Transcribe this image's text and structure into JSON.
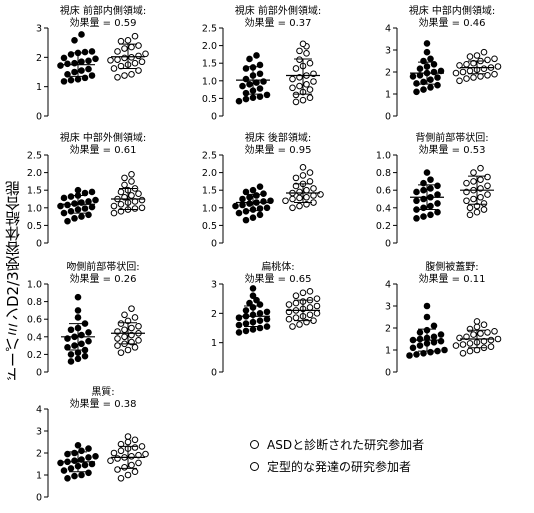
{
  "ylabel": "ドーパミンD2/3受容体結合能",
  "legend": {
    "asd": "ASDと診断された研究参加者",
    "td": "定型的な発達の研究参加者"
  },
  "chart_data": [
    {
      "type": "scatter",
      "title": "視床 前部内側領域:",
      "subtitle": "効果量 = 0.59",
      "ylim": [
        0,
        3
      ],
      "yticks": [
        "0",
        "1",
        "2",
        "3"
      ],
      "asd_mean": 1.75,
      "asd_sd": [
        1.35,
        2.15
      ],
      "td_mean": 2.02,
      "td_sd": [
        1.62,
        2.45
      ],
      "asd": [
        2.78,
        2.58,
        2.2,
        2.15,
        2.18,
        2.1,
        1.95,
        1.98,
        1.85,
        1.8,
        1.88,
        1.78,
        1.72,
        1.6,
        1.55,
        1.5,
        1.42,
        1.38,
        1.3,
        1.25,
        1.22,
        1.18
      ],
      "td": [
        2.72,
        2.55,
        2.58,
        2.4,
        2.35,
        2.3,
        2.2,
        2.12,
        2.05,
        2.0,
        1.98,
        1.92,
        1.9,
        1.85,
        1.8,
        1.75,
        1.7,
        1.62,
        1.55,
        1.42,
        1.38,
        1.32
      ]
    },
    {
      "type": "scatter",
      "title": "視床 前部外側領域:",
      "subtitle": "効果量 = 0.37",
      "ylim": [
        0,
        2.5
      ],
      "yticks": [
        "0",
        "0.5",
        "1.0",
        "1.5",
        "2.0",
        "2.5"
      ],
      "asd_mean": 1.02,
      "asd_sd": [
        0.62,
        1.4
      ],
      "td_mean": 1.15,
      "td_sd": [
        0.62,
        1.62
      ],
      "asd": [
        1.72,
        1.62,
        1.45,
        1.38,
        1.35,
        1.2,
        1.15,
        1.05,
        0.98,
        0.95,
        0.9,
        0.85,
        0.78,
        0.72,
        0.65,
        0.6,
        0.55,
        0.52,
        0.48,
        0.42
      ],
      "td": [
        2.05,
        1.98,
        1.85,
        1.78,
        1.6,
        1.5,
        1.42,
        1.35,
        1.2,
        1.15,
        1.1,
        1.05,
        0.98,
        0.9,
        0.85,
        0.8,
        0.75,
        0.68,
        0.6,
        0.52,
        0.45,
        0.4
      ]
    },
    {
      "type": "scatter",
      "title": "視床 中部内側領域:",
      "subtitle": "効果量 = 0.46",
      "ylim": [
        0,
        4
      ],
      "yticks": [
        "0",
        "1",
        "2",
        "3",
        "4"
      ],
      "asd_mean": 1.95,
      "asd_sd": [
        1.45,
        2.45
      ],
      "td_mean": 2.2,
      "td_sd": [
        1.92,
        2.5
      ],
      "asd": [
        3.3,
        2.9,
        2.6,
        2.5,
        2.35,
        2.25,
        2.15,
        2.05,
        2.0,
        1.95,
        1.85,
        1.8,
        1.75,
        1.65,
        1.55,
        1.48,
        1.4,
        1.3,
        1.2,
        1.1
      ],
      "td": [
        2.9,
        2.75,
        2.7,
        2.6,
        2.55,
        2.5,
        2.4,
        2.35,
        2.3,
        2.25,
        2.2,
        2.15,
        2.1,
        2.05,
        2.0,
        1.95,
        1.9,
        1.85,
        1.8,
        1.75,
        1.7,
        1.6
      ]
    },
    {
      "type": "scatter",
      "title": "視床 中部外側領域:",
      "subtitle": "効果量 = 0.61",
      "ylim": [
        0,
        2.5
      ],
      "yticks": [
        "0",
        "0.5",
        "1.0",
        "1.5",
        "2.0",
        "2.5"
      ],
      "asd_mean": 1.1,
      "asd_sd": [
        0.85,
        1.35
      ],
      "td_mean": 1.25,
      "td_sd": [
        0.95,
        1.55
      ],
      "asd": [
        1.5,
        1.45,
        1.42,
        1.35,
        1.32,
        1.28,
        1.22,
        1.18,
        1.15,
        1.12,
        1.08,
        1.05,
        1.02,
        0.98,
        0.95,
        0.9,
        0.85,
        0.8,
        0.75,
        0.7,
        0.62
      ],
      "td": [
        1.95,
        1.85,
        1.75,
        1.65,
        1.55,
        1.5,
        1.45,
        1.4,
        1.35,
        1.3,
        1.25,
        1.22,
        1.18,
        1.15,
        1.1,
        1.05,
        1.0,
        0.98,
        0.95,
        0.9,
        0.85
      ]
    },
    {
      "type": "scatter",
      "title": "視床 後部領域:",
      "subtitle": "効果量 = 0.95",
      "ylim": [
        0,
        2.5
      ],
      "yticks": [
        "0",
        "0.5",
        "1.0",
        "1.5",
        "2.0",
        "2.5"
      ],
      "asd_mean": 1.15,
      "asd_sd": [
        0.92,
        1.38
      ],
      "td_mean": 1.42,
      "td_sd": [
        1.15,
        1.68
      ],
      "asd": [
        1.6,
        1.5,
        1.45,
        1.4,
        1.35,
        1.3,
        1.25,
        1.2,
        1.18,
        1.15,
        1.12,
        1.08,
        1.05,
        1.0,
        0.98,
        0.95,
        0.9,
        0.85,
        0.8,
        0.72,
        0.65
      ],
      "td": [
        2.15,
        2.0,
        1.92,
        1.85,
        1.75,
        1.68,
        1.62,
        1.55,
        1.5,
        1.45,
        1.42,
        1.38,
        1.35,
        1.3,
        1.28,
        1.25,
        1.2,
        1.15,
        1.1,
        1.05,
        1.0
      ]
    },
    {
      "type": "scatter",
      "title": "背側前部帯状回:",
      "subtitle": "効果量 = 0.53",
      "ylim": [
        0,
        1.0
      ],
      "yticks": [
        "0",
        "0.2",
        "0.4",
        "0.6",
        "0.8",
        "1.0"
      ],
      "asd_mean": 0.52,
      "asd_sd": [
        0.38,
        0.66
      ],
      "td_mean": 0.6,
      "td_sd": [
        0.44,
        0.76
      ],
      "asd": [
        0.8,
        0.72,
        0.68,
        0.65,
        0.62,
        0.6,
        0.58,
        0.55,
        0.52,
        0.5,
        0.48,
        0.45,
        0.42,
        0.4,
        0.38,
        0.35,
        0.32,
        0.3,
        0.28
      ],
      "td": [
        0.85,
        0.8,
        0.75,
        0.72,
        0.7,
        0.68,
        0.65,
        0.62,
        0.6,
        0.58,
        0.55,
        0.52,
        0.5,
        0.48,
        0.45,
        0.42,
        0.4,
        0.38,
        0.35,
        0.32
      ]
    },
    {
      "type": "scatter",
      "title": "吻側前部帯状回:",
      "subtitle": "効果量 = 0.26",
      "ylim": [
        0,
        1.0
      ],
      "yticks": [
        "0",
        "0.2",
        "0.4",
        "0.6",
        "0.8",
        "1.0"
      ],
      "asd_mean": 0.4,
      "asd_sd": [
        0.25,
        0.55
      ],
      "td_mean": 0.44,
      "td_sd": [
        0.32,
        0.56
      ],
      "asd": [
        0.85,
        0.7,
        0.62,
        0.55,
        0.5,
        0.48,
        0.45,
        0.42,
        0.4,
        0.38,
        0.35,
        0.32,
        0.3,
        0.28,
        0.25,
        0.22,
        0.2,
        0.18,
        0.15,
        0.12
      ],
      "td": [
        0.72,
        0.65,
        0.62,
        0.58,
        0.55,
        0.52,
        0.5,
        0.48,
        0.46,
        0.44,
        0.42,
        0.4,
        0.38,
        0.36,
        0.34,
        0.32,
        0.3,
        0.28,
        0.25,
        0.22
      ]
    },
    {
      "type": "scatter",
      "title": "扁桃体:",
      "subtitle": "効果量 = 0.65",
      "ylim": [
        0,
        3
      ],
      "yticks": [
        "0",
        "1",
        "2",
        "3"
      ],
      "asd_mean": 1.9,
      "asd_sd": [
        1.55,
        2.25
      ],
      "td_mean": 2.1,
      "td_sd": [
        1.75,
        2.45
      ],
      "asd": [
        2.85,
        2.6,
        2.45,
        2.35,
        2.3,
        2.2,
        2.1,
        2.05,
        2.0,
        1.95,
        1.9,
        1.85,
        1.8,
        1.75,
        1.7,
        1.65,
        1.6,
        1.55,
        1.5,
        1.45,
        1.4,
        1.35
      ],
      "td": [
        2.75,
        2.7,
        2.6,
        2.5,
        2.45,
        2.4,
        2.35,
        2.3,
        2.25,
        2.2,
        2.15,
        2.1,
        2.05,
        2.0,
        1.95,
        1.9,
        1.85,
        1.8,
        1.75,
        1.7,
        1.62,
        1.55
      ]
    },
    {
      "type": "scatter",
      "title": "腹側被蓋野:",
      "subtitle": "効果量 = 0.11",
      "ylim": [
        0,
        4
      ],
      "yticks": [
        "0",
        "1",
        "2",
        "3",
        "4"
      ],
      "asd_mean": 1.45,
      "asd_sd": [
        0.95,
        1.95
      ],
      "td_mean": 1.5,
      "td_sd": [
        1.1,
        1.9
      ],
      "asd": [
        3.0,
        2.5,
        2.1,
        1.9,
        1.8,
        1.7,
        1.6,
        1.55,
        1.5,
        1.45,
        1.4,
        1.35,
        1.3,
        1.2,
        1.1,
        1.0,
        0.95,
        0.9,
        0.85,
        0.8,
        0.75
      ],
      "td": [
        2.3,
        2.15,
        2.05,
        1.95,
        1.85,
        1.8,
        1.75,
        1.7,
        1.6,
        1.55,
        1.5,
        1.45,
        1.4,
        1.35,
        1.3,
        1.25,
        1.2,
        1.15,
        1.1,
        1.0,
        0.95,
        0.85
      ]
    },
    {
      "type": "scatter",
      "title": "黒質:",
      "subtitle": "効果量 = 0.38",
      "ylim": [
        0,
        4
      ],
      "yticks": [
        "0",
        "1",
        "2",
        "3",
        "4"
      ],
      "asd_mean": 1.6,
      "asd_sd": [
        1.15,
        2.05
      ],
      "td_mean": 1.8,
      "td_sd": [
        1.3,
        2.3
      ],
      "asd": [
        2.35,
        2.2,
        2.1,
        2.0,
        1.95,
        1.85,
        1.8,
        1.7,
        1.65,
        1.6,
        1.55,
        1.5,
        1.45,
        1.4,
        1.3,
        1.2,
        1.1,
        1.0,
        0.95,
        0.85
      ],
      "td": [
        2.75,
        2.6,
        2.5,
        2.4,
        2.3,
        2.25,
        2.2,
        2.1,
        2.0,
        1.95,
        1.9,
        1.85,
        1.8,
        1.75,
        1.65,
        1.55,
        1.45,
        1.35,
        1.25,
        1.15,
        1.0,
        0.85
      ]
    }
  ]
}
